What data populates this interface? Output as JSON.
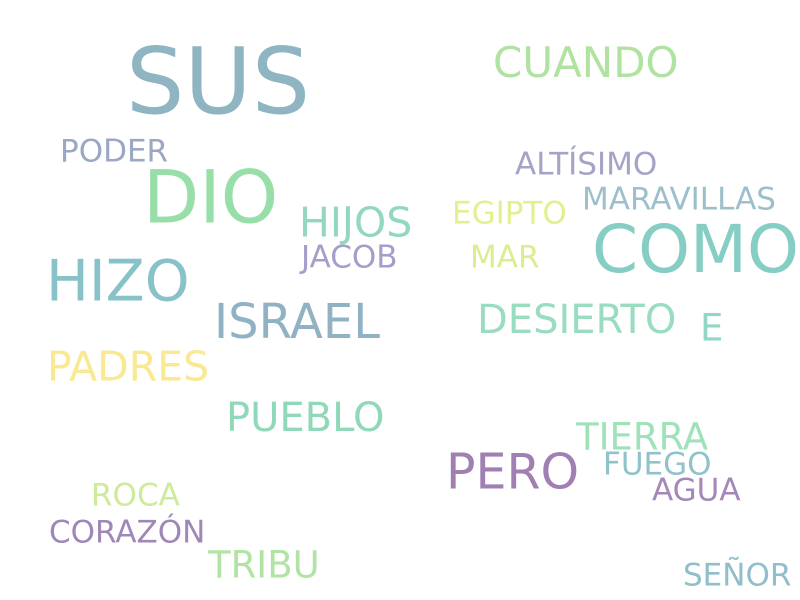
{
  "words": [
    {
      "text": "SUS",
      "color": "#8fb4c2"
    },
    {
      "text": "CUANDO",
      "color": "#b0e3a1"
    },
    {
      "text": "PODER",
      "color": "#9aa8c3"
    },
    {
      "text": "ALTÍSIMO",
      "color": "#a3a4c6"
    },
    {
      "text": "DIO",
      "color": "#98dea9"
    },
    {
      "text": "MARAVILLAS",
      "color": "#9dbfcc"
    },
    {
      "text": "HIJOS",
      "color": "#92d7be"
    },
    {
      "text": "EGIPTO",
      "color": "#e4ef8f"
    },
    {
      "text": "COMO",
      "color": "#86cdc3"
    },
    {
      "text": "JACOB",
      "color": "#a39fca"
    },
    {
      "text": "MAR",
      "color": "#d9ee91"
    },
    {
      "text": "HIZO",
      "color": "#87c2c8"
    },
    {
      "text": "ISRAEL",
      "color": "#91b2c4"
    },
    {
      "text": "DESIERTO",
      "color": "#9adcbf"
    },
    {
      "text": "E",
      "color": "#92d6c7"
    },
    {
      "text": "PADRES",
      "color": "#fae991"
    },
    {
      "text": "PUEBLO",
      "color": "#8fd8b8"
    },
    {
      "text": "TIERRA",
      "color": "#9fe1b9"
    },
    {
      "text": "PERO",
      "color": "#a07fb2"
    },
    {
      "text": "FUEGO",
      "color": "#90c2cc"
    },
    {
      "text": "ROCA",
      "color": "#cdeb9b"
    },
    {
      "text": "AGUA",
      "color": "#a587b8"
    },
    {
      "text": "CORAZÓN",
      "color": "#9f88b8"
    },
    {
      "text": "TRIBU",
      "color": "#b0e3a4"
    },
    {
      "text": "SEÑOR",
      "color": "#8ebfcb"
    }
  ]
}
